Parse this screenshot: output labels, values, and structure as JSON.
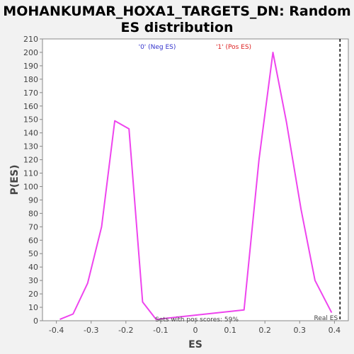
{
  "chart_data": {
    "type": "line",
    "title_line1": "MOHANKUMAR_HOXA1_TARGETS_DN: Random",
    "title_line2": "ES distribution",
    "xlabel": "ES",
    "ylabel": "P(ES)",
    "xlim": [
      -0.44,
      0.44
    ],
    "ylim": [
      0,
      210
    ],
    "xticks": [
      -0.4,
      -0.3,
      -0.2,
      -0.1,
      0,
      0.1,
      0.2,
      0.3,
      0.4
    ],
    "xtick_labels": [
      "-0.4",
      "-0.3",
      "-0.2",
      "-0.1",
      "0",
      "0.1",
      "0.2",
      "0.3",
      "0.4"
    ],
    "yticks": [
      0,
      10,
      20,
      30,
      40,
      50,
      60,
      70,
      80,
      90,
      100,
      110,
      120,
      130,
      140,
      150,
      160,
      170,
      180,
      190,
      200,
      210
    ],
    "grid": false,
    "series": [
      {
        "color": "#ee44ee",
        "x": [
          -0.39,
          -0.352,
          -0.31,
          -0.27,
          -0.232,
          -0.191,
          -0.152,
          -0.113,
          0.14,
          0.183,
          0.223,
          0.262,
          0.304,
          0.344,
          0.392
        ],
        "y": [
          1,
          5,
          28,
          70,
          149,
          143,
          14,
          1,
          8,
          120,
          200,
          148,
          83,
          30,
          6
        ]
      }
    ],
    "legend": [
      {
        "label": "'0' (Neg ES)",
        "color": "#3333cc"
      },
      {
        "label": "'1' (Pos ES)",
        "color": "#dd2222"
      }
    ],
    "legend_position": "top",
    "real_es": {
      "x": 0.416,
      "label": "Real ES"
    },
    "annotation": "Sets with pos scores: 59%"
  }
}
